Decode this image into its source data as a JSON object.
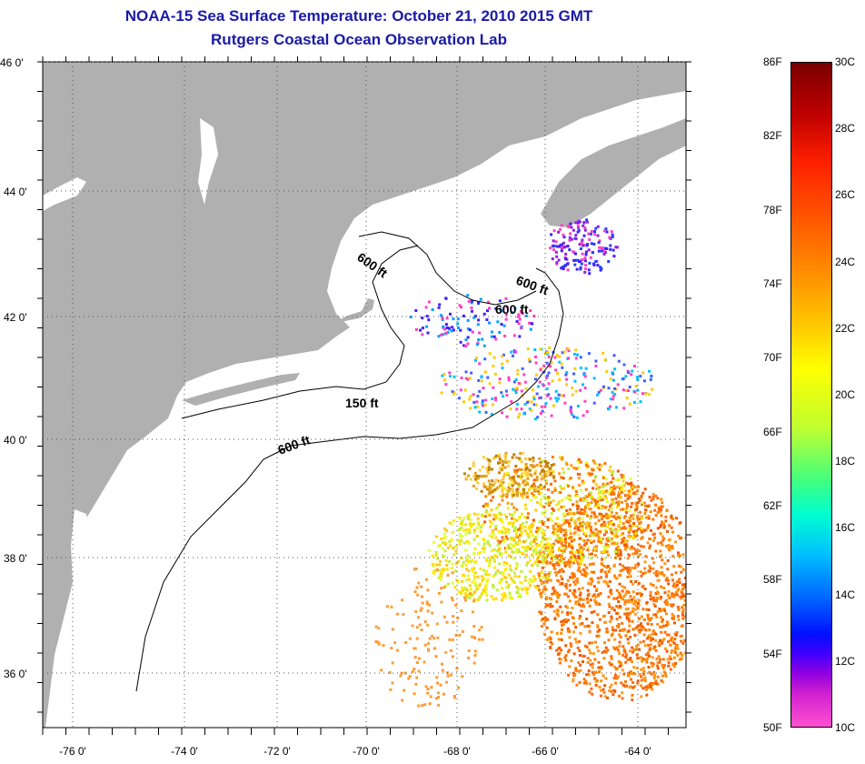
{
  "title": {
    "line1": "NOAA-15 Sea Surface Temperature:  October 21, 2010 2015 GMT",
    "line2": "Rutgers Coastal Ocean Observation Lab"
  },
  "map": {
    "lat_labels": [
      "46 0'",
      "44 0'",
      "42 0'",
      "40 0'",
      "38 0'",
      "36 0'"
    ],
    "lon_labels": [
      "-76 0'",
      "-74 0'",
      "-72 0'",
      "-70 0'",
      "-68 0'",
      "-66 0'",
      "-64 0'"
    ],
    "contour_labels": [
      "600 ft",
      "600 ft",
      "600 ft",
      "150 ft",
      "600 ft"
    ],
    "land_color": "#b0b0b0"
  },
  "colorbar": {
    "fahrenheit_labels": [
      "86F",
      "82F",
      "78F",
      "74F",
      "70F",
      "66F",
      "62F",
      "58F",
      "54F",
      "50F"
    ],
    "celsius_labels": [
      "30C",
      "28C",
      "26C",
      "24C",
      "22C",
      "20C",
      "18C",
      "16C",
      "14C",
      "12C",
      "10C"
    ]
  }
}
